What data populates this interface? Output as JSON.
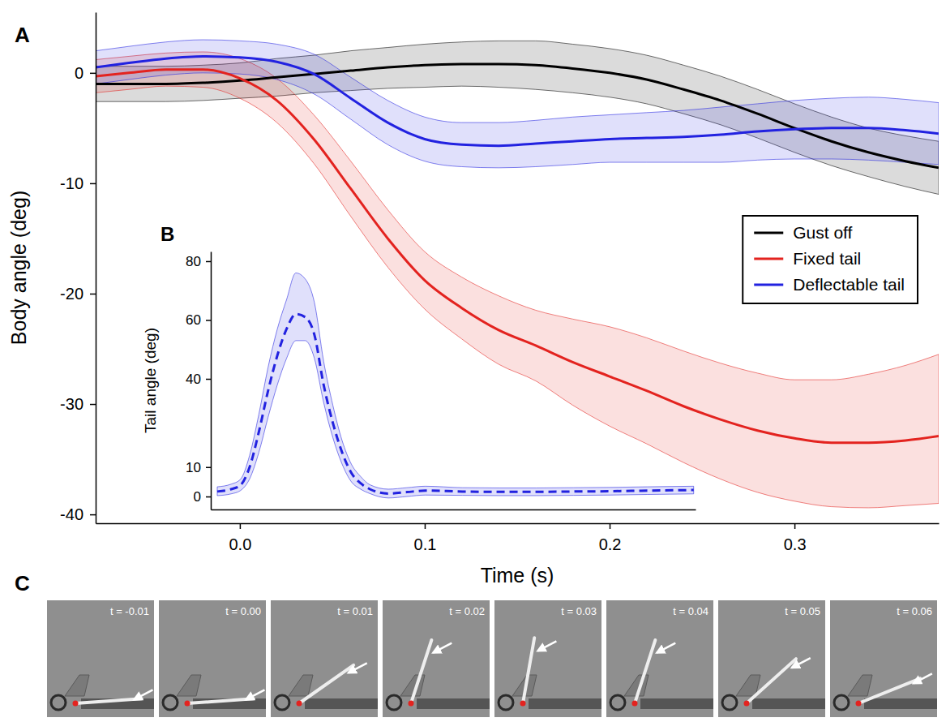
{
  "chart_data": [
    {
      "panel": "A",
      "type": "line",
      "x_label": "Time (s)",
      "y_label": "Body angle (deg)",
      "x": [
        -0.078,
        -0.06,
        -0.04,
        -0.02,
        0,
        0.02,
        0.04,
        0.06,
        0.08,
        0.1,
        0.12,
        0.14,
        0.16,
        0.18,
        0.2,
        0.22,
        0.24,
        0.26,
        0.28,
        0.3,
        0.32,
        0.34,
        0.36,
        0.378
      ],
      "xlim": [
        -0.078,
        0.378
      ],
      "ylim": [
        -40.8,
        5.5
      ],
      "xticks": [
        {
          "value": 0,
          "label": "0.0"
        },
        0.1,
        0.2,
        0.3
      ],
      "yticks": [
        -40,
        -30,
        -20,
        -10,
        0
      ],
      "legend": "right",
      "series": [
        {
          "name": "Gust off",
          "color": "#000000",
          "values": [
            -1.0,
            -1.0,
            -1.0,
            -0.9,
            -0.7,
            -0.4,
            -0.1,
            0.2,
            0.5,
            0.7,
            0.8,
            0.8,
            0.7,
            0.4,
            0.0,
            -0.6,
            -1.5,
            -2.5,
            -3.7,
            -5.0,
            -6.2,
            -7.2,
            -8.0,
            -8.6
          ],
          "lower": [
            -2.6,
            -2.6,
            -2.6,
            -2.5,
            -2.3,
            -2.1,
            -1.8,
            -1.6,
            -1.4,
            -1.3,
            -1.2,
            -1.3,
            -1.5,
            -1.8,
            -2.2,
            -2.8,
            -3.7,
            -4.7,
            -5.9,
            -7.2,
            -8.4,
            -9.4,
            -10.3,
            -11.0
          ],
          "upper": [
            0.6,
            0.6,
            0.6,
            0.7,
            0.9,
            1.3,
            1.6,
            2.0,
            2.3,
            2.6,
            2.8,
            2.9,
            2.9,
            2.6,
            2.2,
            1.6,
            0.7,
            -0.3,
            -1.5,
            -2.8,
            -4.0,
            -5.0,
            -5.7,
            -6.2
          ]
        },
        {
          "name": "Fixed tail",
          "color": "#e3231f",
          "values": [
            -0.3,
            0.0,
            0.3,
            0.3,
            -0.5,
            -2.5,
            -6.0,
            -10.5,
            -15.0,
            -18.8,
            -21.3,
            -23.3,
            -24.7,
            -26.2,
            -27.5,
            -28.8,
            -30.2,
            -31.4,
            -32.4,
            -33.1,
            -33.5,
            -33.5,
            -33.3,
            -32.9
          ],
          "lower": [
            -1.8,
            -1.5,
            -1.2,
            -1.3,
            -2.3,
            -4.5,
            -8.2,
            -13.0,
            -17.6,
            -21.4,
            -24.1,
            -26.4,
            -27.9,
            -30.1,
            -32.0,
            -33.6,
            -35.3,
            -36.8,
            -38.0,
            -38.8,
            -39.3,
            -39.4,
            -39.2,
            -39.0
          ],
          "upper": [
            1.2,
            1.5,
            1.8,
            1.9,
            1.3,
            -0.5,
            -3.8,
            -8.0,
            -12.4,
            -16.2,
            -18.5,
            -20.2,
            -21.5,
            -22.3,
            -23.0,
            -24.0,
            -25.2,
            -26.3,
            -27.2,
            -27.8,
            -27.8,
            -27.3,
            -26.5,
            -25.5
          ]
        },
        {
          "name": "Deflectable tail",
          "color": "#2222e0",
          "values": [
            0.5,
            0.9,
            1.3,
            1.5,
            1.4,
            1.0,
            -0.1,
            -2.3,
            -4.5,
            -6.0,
            -6.5,
            -6.6,
            -6.4,
            -6.2,
            -6.0,
            -5.9,
            -5.8,
            -5.6,
            -5.3,
            -5.1,
            -5.0,
            -5.0,
            -5.2,
            -5.5
          ],
          "lower": [
            -1.0,
            -0.6,
            -0.2,
            0.0,
            -0.1,
            -0.6,
            -1.9,
            -4.2,
            -6.5,
            -8.0,
            -8.5,
            -8.6,
            -8.5,
            -8.3,
            -8.1,
            -8.1,
            -8.1,
            -8.1,
            -7.9,
            -7.8,
            -7.8,
            -7.9,
            -8.1,
            -8.3
          ],
          "upper": [
            2.0,
            2.4,
            2.8,
            3.0,
            2.9,
            2.6,
            1.7,
            -0.4,
            -2.5,
            -4.0,
            -4.5,
            -4.5,
            -4.3,
            -4.0,
            -3.8,
            -3.6,
            -3.4,
            -3.1,
            -2.8,
            -2.5,
            -2.3,
            -2.2,
            -2.4,
            -2.7
          ]
        }
      ]
    },
    {
      "panel": "B",
      "type": "line",
      "y_label": "Tail angle (deg)",
      "x": [
        -0.0125,
        -0.005,
        0,
        0.005,
        0.01,
        0.015,
        0.02,
        0.025,
        0.03,
        0.035,
        0.04,
        0.045,
        0.05,
        0.055,
        0.06,
        0.065,
        0.07,
        0.08,
        0.09,
        0.1,
        0.12,
        0.14,
        0.16,
        0.18,
        0.2,
        0.22,
        0.245
      ],
      "xlim": [
        -0.016,
        0.246
      ],
      "ylim": [
        -4.4,
        83.3
      ],
      "yticks": [
        0,
        10,
        40,
        60,
        80
      ],
      "tick_labels": "y",
      "series": [
        {
          "color": "#2222e0",
          "line_style": "dashed",
          "values": [
            1.7,
            2.5,
            3.8,
            10,
            22,
            36,
            48,
            57,
            62,
            61,
            55,
            38,
            25,
            15,
            8,
            4.5,
            2.5,
            1.0,
            1.5,
            2.0,
            1.7,
            1.6,
            1.6,
            1.7,
            1.8,
            2.0,
            2.2
          ],
          "lower": [
            0.3,
            0.9,
            2.0,
            6,
            15,
            27,
            38,
            47,
            53,
            53,
            47,
            32,
            20,
            11,
            5,
            2.5,
            1.0,
            -0.5,
            0.0,
            0.5,
            0.4,
            0.3,
            0.3,
            0.4,
            0.5,
            0.7,
            0.9
          ],
          "upper": [
            3.3,
            4.2,
            5.8,
            14,
            28,
            44,
            57,
            67,
            76,
            74,
            66,
            46,
            31,
            19,
            11,
            6.8,
            4.0,
            2.5,
            3.0,
            3.5,
            3.0,
            2.9,
            2.9,
            3.0,
            3.1,
            3.3,
            3.5
          ]
        }
      ]
    }
  ],
  "panel_c": {
    "panel": "C",
    "frames": [
      {
        "label": "t = -0.01",
        "tail_angle": 4
      },
      {
        "label": "t = 0.00",
        "tail_angle": 4
      },
      {
        "label": "t = 0.01",
        "tail_angle": 35
      },
      {
        "label": "t = 0.02",
        "tail_angle": 72
      },
      {
        "label": "t = 0.03",
        "tail_angle": 80
      },
      {
        "label": "t = 0.04",
        "tail_angle": 72
      },
      {
        "label": "t = 0.05",
        "tail_angle": 42
      },
      {
        "label": "t = 0.06",
        "tail_angle": 22
      }
    ]
  }
}
